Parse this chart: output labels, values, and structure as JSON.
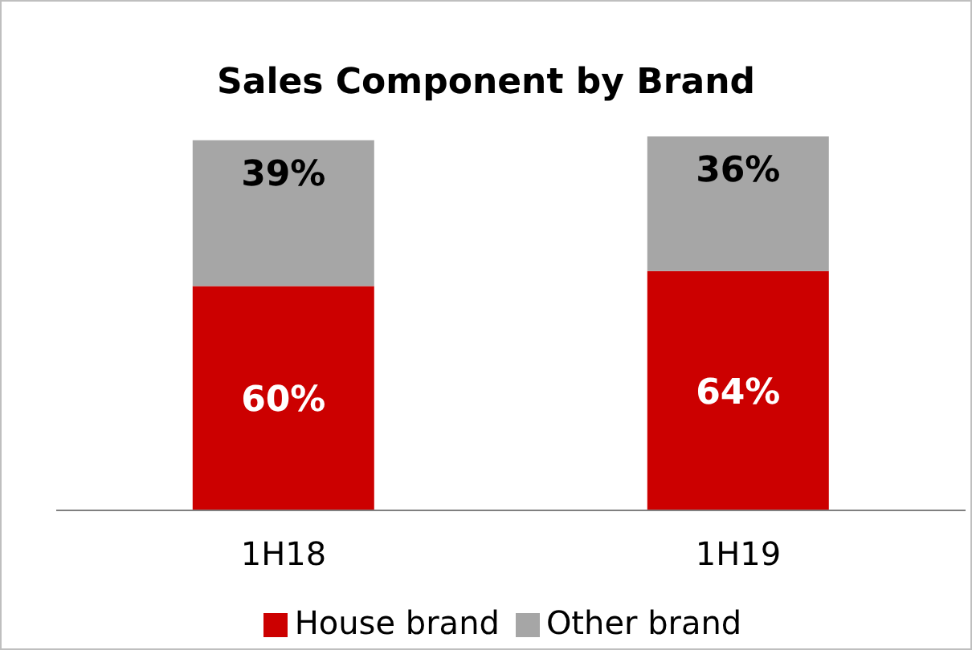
{
  "chart_data": {
    "type": "bar",
    "title": "Sales Component by Brand",
    "categories": [
      "1H18",
      "1H19"
    ],
    "stacked": true,
    "legend": "bottom",
    "series": [
      {
        "name": "House brand",
        "color": "#cc0000",
        "values": [
          60,
          64
        ],
        "value_labels": [
          "60%",
          "64%"
        ]
      },
      {
        "name": "Other brand",
        "color": "#a6a6a6",
        "values": [
          39,
          36
        ],
        "value_labels": [
          "39%",
          "36%"
        ]
      }
    ]
  }
}
